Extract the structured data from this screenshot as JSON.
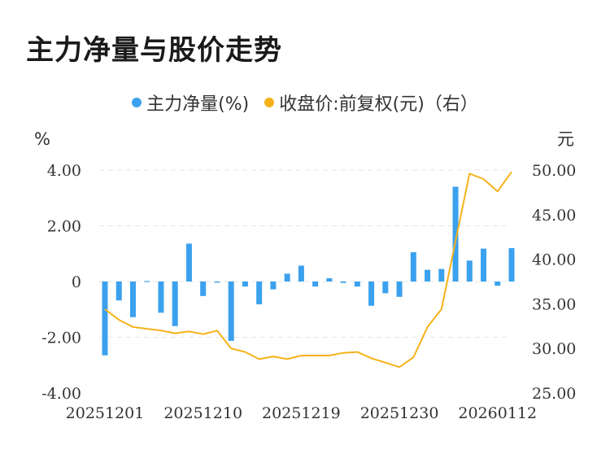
{
  "title": "主力净量与股价走势",
  "legend": {
    "bar_label": "主力净量(%)",
    "line_label": "收盘价:前复权(元)（右）"
  },
  "colors": {
    "bar": "#3ba1ee",
    "line": "#f6b21b",
    "grid": "#e6e6e6"
  },
  "chart_data": {
    "type": "bar",
    "title": "主力净量与股价走势",
    "left_unit": "%",
    "right_unit": "元",
    "left_ylim": [
      -4,
      4
    ],
    "right_ylim": [
      25,
      50
    ],
    "left_ticks": [
      "4.00",
      "2.00",
      "0",
      "-2.00",
      "-4.00"
    ],
    "right_ticks": [
      "50.00",
      "45.00",
      "40.00",
      "35.00",
      "30.00",
      "25.00"
    ],
    "x_tick_labels": [
      "20251201",
      "20251210",
      "20251219",
      "20251230",
      "20260112"
    ],
    "x_tick_indices": [
      0,
      7,
      14,
      21,
      28
    ],
    "grid": true,
    "legend_position": "top",
    "series": [
      {
        "name": "主力净量(%)",
        "type": "bar",
        "axis": "left",
        "values": [
          -2.65,
          -0.68,
          -1.28,
          0.02,
          -1.12,
          -1.6,
          1.36,
          -0.52,
          -0.04,
          -2.13,
          -0.18,
          -0.82,
          -0.28,
          0.28,
          0.57,
          -0.18,
          0.12,
          -0.05,
          -0.18,
          -0.87,
          -0.42,
          -0.55,
          1.05,
          0.42,
          0.45,
          3.4,
          0.75,
          1.18,
          -0.15,
          1.2
        ]
      },
      {
        "name": "收盘价:前复权(元)（右）",
        "type": "line",
        "axis": "right",
        "values": [
          34.4,
          33.2,
          32.4,
          32.2,
          32.0,
          31.7,
          31.9,
          31.6,
          32.0,
          30.0,
          29.6,
          28.8,
          29.1,
          28.8,
          29.2,
          29.2,
          29.2,
          29.5,
          29.6,
          28.9,
          28.4,
          27.9,
          29.0,
          32.4,
          34.4,
          42.0,
          49.6,
          49.0,
          47.6,
          49.8
        ]
      }
    ]
  }
}
